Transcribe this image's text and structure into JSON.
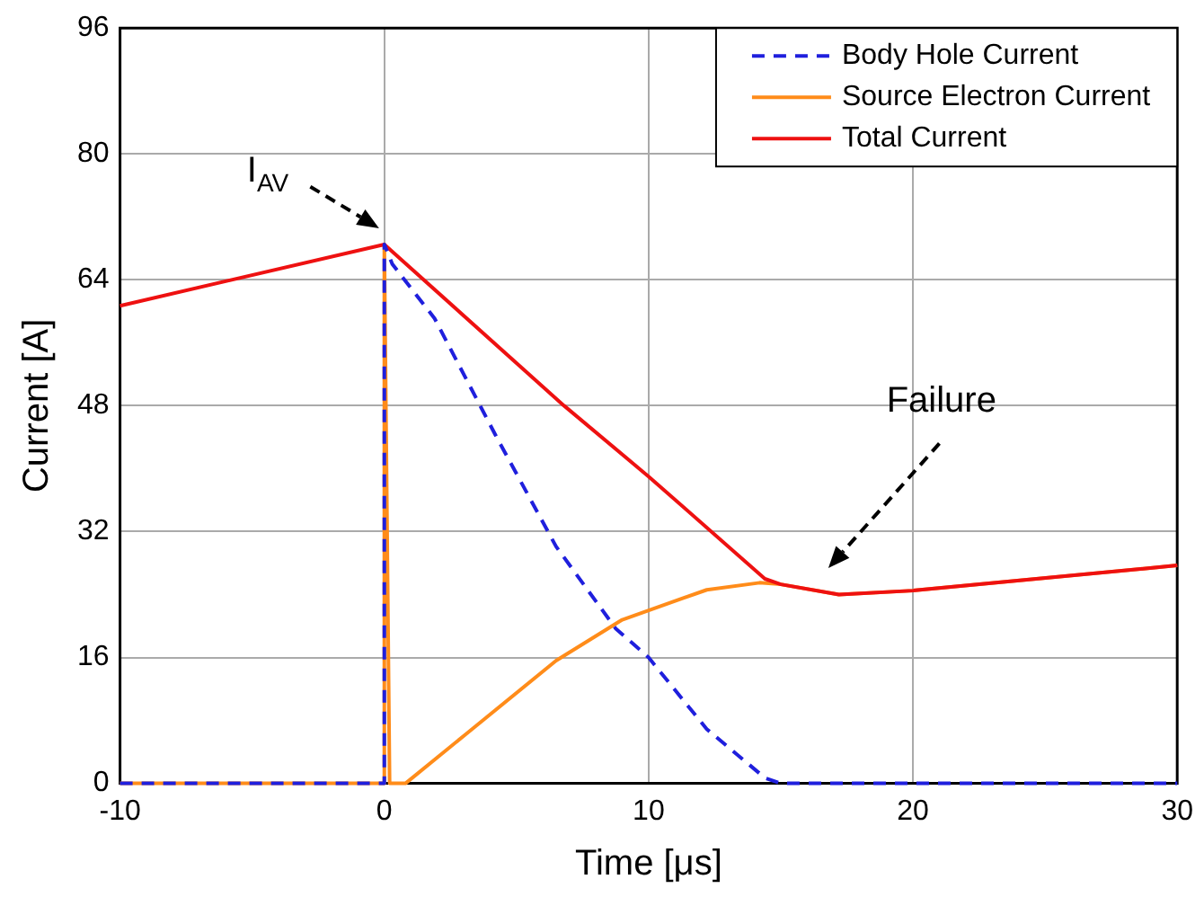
{
  "chart_data": {
    "type": "line",
    "xlabel": "Time [μs]",
    "ylabel": "Current [A]",
    "xlim": [
      -10,
      30
    ],
    "xticks": [
      -10,
      0,
      10,
      20,
      30
    ],
    "ylim": [
      0,
      96
    ],
    "yticks": [
      0,
      16,
      32,
      48,
      64,
      80,
      96
    ],
    "grid": true,
    "legend": "top right",
    "marker": "none",
    "series": [
      {
        "name": "Body Hole Current",
        "color": "#1f1fdd",
        "line_style": "dashed",
        "x": [
          -10,
          0,
          0,
          0.3,
          1.9,
          4.2,
          6.5,
          8.75,
          10,
          12.2,
          14.4,
          15,
          20,
          30
        ],
        "values": [
          0,
          0,
          68.5,
          66,
          59.1,
          44.3,
          30.1,
          19.7,
          16,
          6.9,
          0.7,
          0,
          0,
          0
        ]
      },
      {
        "name": "Source Electron Current",
        "color": "#ff8c1a",
        "line_style": "solid",
        "x": [
          -10,
          0,
          0,
          0.2,
          0.8,
          3.1,
          6.5,
          9,
          12.2,
          14.2,
          15,
          17.2,
          20,
          30
        ],
        "values": [
          0,
          0,
          68.5,
          0,
          0,
          6.3,
          15.6,
          20.8,
          24.6,
          25.5,
          25.3,
          24,
          24.5,
          27.7
        ]
      },
      {
        "name": "Total Current",
        "color": "#ee1111",
        "line_style": "solid",
        "x": [
          -10,
          0,
          6.8,
          10,
          14.4,
          15,
          17.2,
          20,
          30
        ],
        "values": [
          60.7,
          68.5,
          48,
          39,
          26,
          25.3,
          24,
          24.5,
          27.7
        ]
      }
    ],
    "annotations": [
      "I$_{AV}$",
      "Failure"
    ]
  }
}
